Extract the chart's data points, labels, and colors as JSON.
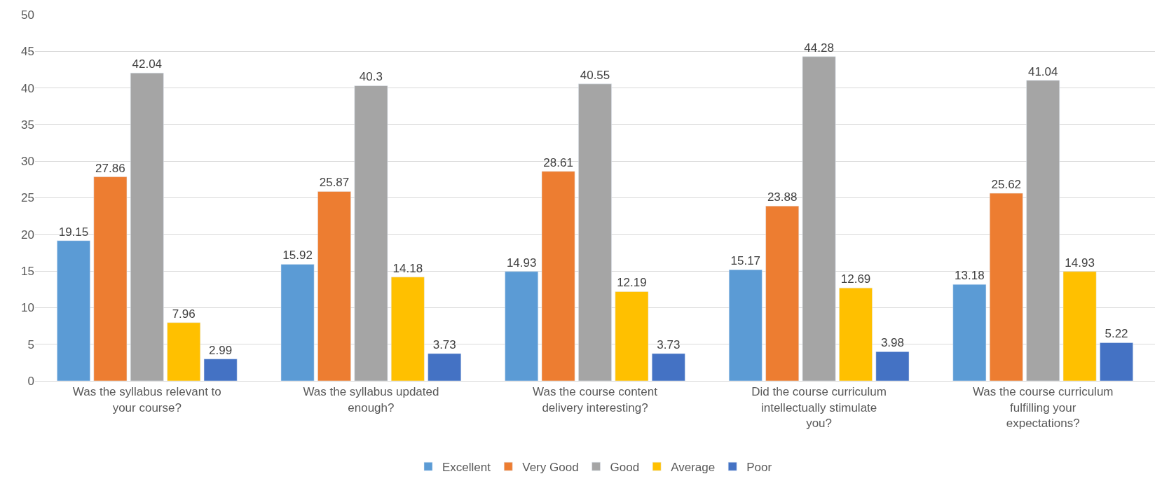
{
  "chart_data": {
    "type": "bar",
    "categories": [
      "Was the syllabus relevant to your course?",
      "Was the syllabus updated enough?",
      "Was the course content delivery interesting?",
      "Did the course curriculum intellectually stimulate you?",
      "Was the course curriculum fulfilling your expectations?"
    ],
    "series": [
      {
        "name": "Excellent",
        "color": "#5b9bd5",
        "values": [
          19.15,
          15.92,
          14.93,
          15.17,
          13.18
        ]
      },
      {
        "name": "Very Good",
        "color": "#ed7d31",
        "values": [
          27.86,
          25.87,
          28.61,
          23.88,
          25.62
        ]
      },
      {
        "name": "Good",
        "color": "#a5a5a5",
        "values": [
          42.04,
          40.3,
          40.55,
          44.28,
          41.04
        ]
      },
      {
        "name": "Average",
        "color": "#ffc000",
        "values": [
          7.96,
          14.18,
          12.19,
          12.69,
          14.93
        ]
      },
      {
        "name": "Poor",
        "color": "#4472c4",
        "values": [
          2.99,
          3.73,
          3.73,
          3.98,
          5.22
        ]
      }
    ],
    "ylim": [
      0,
      50
    ],
    "yticks": [
      0,
      5,
      10,
      15,
      20,
      25,
      30,
      35,
      40,
      45,
      50
    ],
    "grid": "y",
    "legend": "bottom",
    "data_labels": true
  }
}
